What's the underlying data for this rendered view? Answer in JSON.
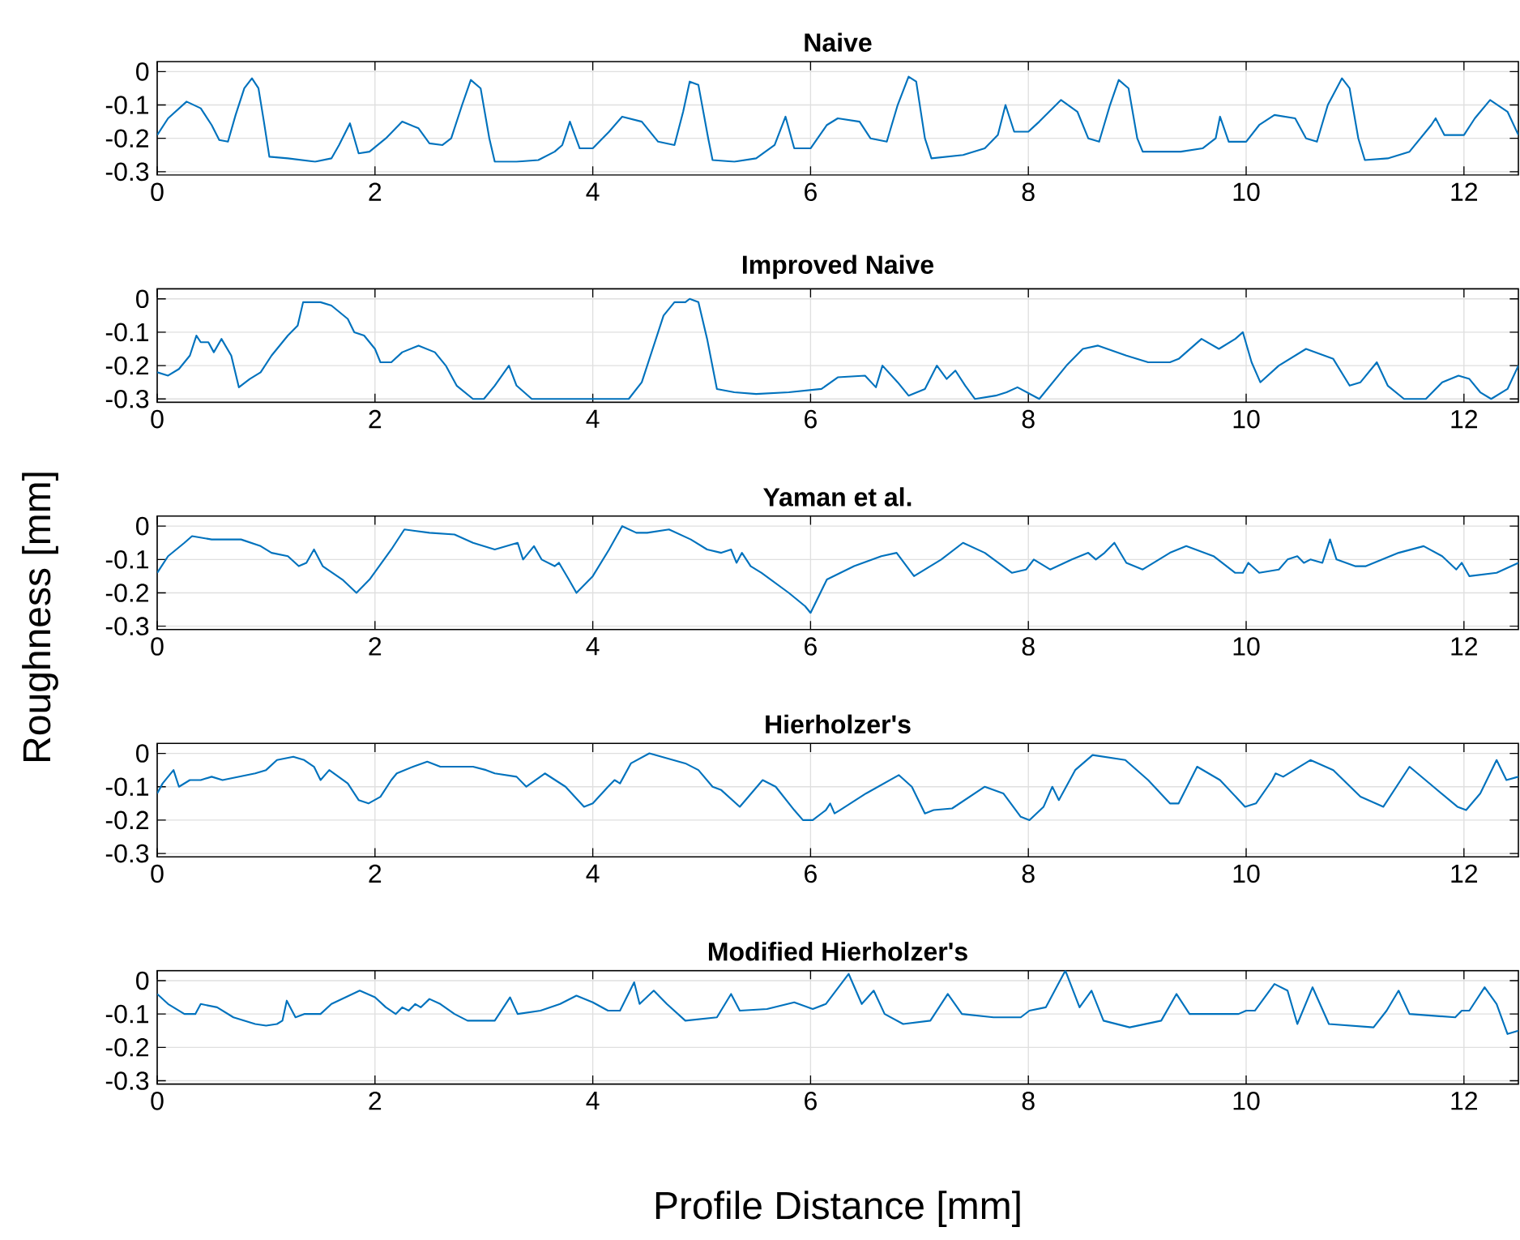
{
  "chart_data": [
    {
      "type": "line",
      "title": "Naive",
      "xlim": [
        0,
        12.5
      ],
      "ylim": [
        -0.31,
        0.03
      ],
      "xticks": [
        0,
        2,
        4,
        6,
        8,
        10,
        12
      ],
      "yticks": [
        -0.3,
        -0.2,
        -0.1,
        0
      ],
      "grid": true,
      "x": [
        0,
        0.1,
        0.27,
        0.4,
        0.5,
        0.57,
        0.65,
        0.72,
        0.8,
        0.87,
        0.93,
        0.98,
        1.03,
        1.2,
        1.45,
        1.6,
        1.67,
        1.77,
        1.85,
        1.95,
        2.1,
        2.25,
        2.4,
        2.5,
        2.62,
        2.7,
        2.8,
        2.88,
        2.97,
        3.05,
        3.1,
        3.3,
        3.5,
        3.65,
        3.72,
        3.79,
        3.88,
        4.0,
        4.15,
        4.27,
        4.45,
        4.6,
        4.75,
        4.83,
        4.89,
        4.97,
        5.06,
        5.1,
        5.3,
        5.5,
        5.67,
        5.77,
        5.85,
        6.0,
        6.15,
        6.25,
        6.45,
        6.55,
        6.7,
        6.8,
        6.9,
        6.97,
        7.05,
        7.11,
        7.4,
        7.6,
        7.72,
        7.79,
        7.87,
        8.0,
        8.1,
        8.3,
        8.45,
        8.55,
        8.65,
        8.75,
        8.83,
        8.92,
        9.0,
        9.05,
        9.4,
        9.6,
        9.72,
        9.76,
        9.84,
        10.0,
        10.12,
        10.26,
        10.45,
        10.55,
        10.65,
        10.75,
        10.88,
        10.95,
        11.03,
        11.09,
        11.3,
        11.5,
        11.6,
        11.7,
        11.74,
        11.82,
        12.0,
        12.1,
        12.24,
        12.4,
        12.5
      ],
      "series": [
        {
          "color": "#0072bd",
          "values": [
            -0.19,
            -0.14,
            -0.09,
            -0.11,
            -0.16,
            -0.205,
            -0.21,
            -0.13,
            -0.05,
            -0.02,
            -0.05,
            -0.15,
            -0.255,
            -0.26,
            -0.27,
            -0.26,
            -0.22,
            -0.155,
            -0.245,
            -0.24,
            -0.2,
            -0.15,
            -0.17,
            -0.215,
            -0.22,
            -0.2,
            -0.1,
            -0.025,
            -0.05,
            -0.2,
            -0.27,
            -0.27,
            -0.265,
            -0.24,
            -0.22,
            -0.15,
            -0.23,
            -0.23,
            -0.18,
            -0.135,
            -0.15,
            -0.21,
            -0.22,
            -0.12,
            -0.03,
            -0.04,
            -0.2,
            -0.265,
            -0.27,
            -0.26,
            -0.22,
            -0.135,
            -0.23,
            -0.23,
            -0.16,
            -0.14,
            -0.15,
            -0.2,
            -0.21,
            -0.1,
            -0.015,
            -0.03,
            -0.2,
            -0.26,
            -0.25,
            -0.23,
            -0.19,
            -0.1,
            -0.18,
            -0.18,
            -0.15,
            -0.085,
            -0.12,
            -0.2,
            -0.21,
            -0.1,
            -0.025,
            -0.05,
            -0.2,
            -0.24,
            -0.24,
            -0.23,
            -0.2,
            -0.135,
            -0.21,
            -0.21,
            -0.16,
            -0.13,
            -0.14,
            -0.2,
            -0.21,
            -0.1,
            -0.02,
            -0.05,
            -0.2,
            -0.265,
            -0.26,
            -0.24,
            -0.2,
            -0.16,
            -0.14,
            -0.19,
            -0.19,
            -0.14,
            -0.085,
            -0.12,
            -0.19
          ]
        }
      ]
    },
    {
      "type": "line",
      "title": "Improved Naive",
      "xlim": [
        0,
        12.5
      ],
      "ylim": [
        -0.31,
        0.03
      ],
      "xticks": [
        0,
        2,
        4,
        6,
        8,
        10,
        12
      ],
      "yticks": [
        -0.3,
        -0.2,
        -0.1,
        0
      ],
      "grid": true,
      "x": [
        0,
        0.1,
        0.2,
        0.3,
        0.36,
        0.4,
        0.47,
        0.52,
        0.59,
        0.68,
        0.75,
        0.85,
        0.95,
        1.05,
        1.2,
        1.29,
        1.34,
        1.5,
        1.6,
        1.75,
        1.81,
        1.9,
        2.0,
        2.05,
        2.15,
        2.25,
        2.4,
        2.55,
        2.65,
        2.75,
        2.9,
        3.0,
        3.1,
        3.23,
        3.3,
        3.44,
        4.33,
        4.45,
        4.55,
        4.65,
        4.75,
        4.85,
        4.89,
        4.97,
        5.05,
        5.14,
        5.3,
        5.5,
        5.8,
        6.1,
        6.25,
        6.5,
        6.6,
        6.66,
        6.8,
        6.9,
        7.05,
        7.16,
        7.25,
        7.33,
        7.42,
        7.51,
        7.7,
        7.8,
        7.9,
        8.1,
        8.35,
        8.5,
        8.64,
        8.9,
        9.1,
        9.3,
        9.38,
        9.59,
        9.75,
        9.9,
        9.97,
        10.05,
        10.13,
        10.3,
        10.55,
        10.8,
        10.95,
        11.05,
        11.2,
        11.3,
        11.45,
        11.65,
        11.8,
        11.95,
        12.05,
        12.15,
        12.25,
        12.4,
        12.5
      ],
      "series": [
        {
          "color": "#0072bd",
          "values": [
            -0.22,
            -0.23,
            -0.21,
            -0.17,
            -0.11,
            -0.13,
            -0.13,
            -0.16,
            -0.12,
            -0.17,
            -0.265,
            -0.24,
            -0.22,
            -0.17,
            -0.11,
            -0.08,
            -0.01,
            -0.01,
            -0.02,
            -0.06,
            -0.1,
            -0.11,
            -0.15,
            -0.19,
            -0.19,
            -0.16,
            -0.14,
            -0.16,
            -0.2,
            -0.26,
            -0.3,
            -0.3,
            -0.26,
            -0.2,
            -0.26,
            -0.3,
            -0.3,
            -0.25,
            -0.15,
            -0.05,
            -0.01,
            -0.01,
            0.0,
            -0.01,
            -0.12,
            -0.27,
            -0.28,
            -0.285,
            -0.28,
            -0.27,
            -0.235,
            -0.23,
            -0.265,
            -0.2,
            -0.25,
            -0.29,
            -0.27,
            -0.2,
            -0.24,
            -0.215,
            -0.26,
            -0.3,
            -0.29,
            -0.28,
            -0.265,
            -0.3,
            -0.2,
            -0.15,
            -0.14,
            -0.17,
            -0.19,
            -0.19,
            -0.18,
            -0.12,
            -0.15,
            -0.12,
            -0.1,
            -0.19,
            -0.25,
            -0.2,
            -0.15,
            -0.18,
            -0.26,
            -0.25,
            -0.19,
            -0.26,
            -0.3,
            -0.3,
            -0.25,
            -0.23,
            -0.24,
            -0.28,
            -0.3,
            -0.27,
            -0.2
          ]
        }
      ]
    },
    {
      "type": "line",
      "title": "Yaman et al.",
      "ylabel": "Roughness [mm]",
      "xlim": [
        0,
        12.5
      ],
      "ylim": [
        -0.31,
        0.03
      ],
      "xticks": [
        0,
        2,
        4,
        6,
        8,
        10,
        12
      ],
      "yticks": [
        -0.3,
        -0.2,
        -0.1,
        0
      ],
      "grid": true,
      "x": [
        0,
        0.1,
        0.25,
        0.32,
        0.5,
        0.7,
        0.77,
        0.95,
        1.05,
        1.2,
        1.3,
        1.37,
        1.44,
        1.52,
        1.7,
        1.83,
        1.95,
        2.15,
        2.27,
        2.5,
        2.73,
        2.9,
        3.1,
        3.31,
        3.36,
        3.46,
        3.53,
        3.65,
        3.69,
        3.78,
        3.85,
        4.0,
        4.15,
        4.27,
        4.4,
        4.5,
        4.7,
        4.9,
        5.05,
        5.18,
        5.27,
        5.32,
        5.37,
        5.45,
        5.55,
        5.8,
        5.95,
        6.0,
        6.15,
        6.4,
        6.65,
        6.79,
        6.95,
        7.2,
        7.4,
        7.6,
        7.85,
        7.98,
        8.05,
        8.2,
        8.4,
        8.55,
        8.62,
        8.7,
        8.79,
        8.9,
        9.05,
        9.3,
        9.45,
        9.7,
        9.9,
        9.97,
        10.02,
        10.12,
        10.3,
        10.38,
        10.47,
        10.53,
        10.59,
        10.7,
        10.77,
        10.83,
        11.0,
        11.1,
        11.4,
        11.63,
        11.8,
        11.93,
        11.98,
        12.05,
        12.3,
        12.5
      ],
      "series": [
        {
          "color": "#0072bd",
          "values": [
            -0.14,
            -0.09,
            -0.05,
            -0.03,
            -0.04,
            -0.04,
            -0.04,
            -0.06,
            -0.08,
            -0.09,
            -0.12,
            -0.11,
            -0.07,
            -0.12,
            -0.16,
            -0.2,
            -0.16,
            -0.07,
            -0.01,
            -0.02,
            -0.025,
            -0.05,
            -0.07,
            -0.05,
            -0.1,
            -0.06,
            -0.1,
            -0.12,
            -0.11,
            -0.16,
            -0.2,
            -0.15,
            -0.07,
            0.0,
            -0.02,
            -0.02,
            -0.01,
            -0.04,
            -0.07,
            -0.08,
            -0.07,
            -0.11,
            -0.08,
            -0.12,
            -0.14,
            -0.2,
            -0.24,
            -0.26,
            -0.16,
            -0.12,
            -0.09,
            -0.08,
            -0.15,
            -0.1,
            -0.05,
            -0.08,
            -0.14,
            -0.13,
            -0.1,
            -0.13,
            -0.1,
            -0.08,
            -0.1,
            -0.08,
            -0.05,
            -0.11,
            -0.13,
            -0.08,
            -0.06,
            -0.09,
            -0.14,
            -0.14,
            -0.11,
            -0.14,
            -0.13,
            -0.1,
            -0.09,
            -0.11,
            -0.1,
            -0.11,
            -0.04,
            -0.1,
            -0.12,
            -0.12,
            -0.08,
            -0.06,
            -0.09,
            -0.13,
            -0.11,
            -0.15,
            -0.14,
            -0.11
          ]
        }
      ]
    },
    {
      "type": "line",
      "title": "Hierholzer's",
      "xlim": [
        0,
        12.5
      ],
      "ylim": [
        -0.31,
        0.03
      ],
      "xticks": [
        0,
        2,
        4,
        6,
        8,
        10,
        12
      ],
      "yticks": [
        -0.3,
        -0.2,
        -0.1,
        0
      ],
      "grid": true,
      "x": [
        0,
        0.05,
        0.15,
        0.2,
        0.3,
        0.4,
        0.5,
        0.6,
        0.9,
        1.0,
        1.1,
        1.25,
        1.35,
        1.44,
        1.5,
        1.58,
        1.75,
        1.85,
        1.94,
        2.05,
        2.15,
        2.2,
        2.35,
        2.48,
        2.6,
        2.9,
        3.02,
        3.1,
        3.3,
        3.39,
        3.56,
        3.75,
        3.92,
        4.0,
        4.14,
        4.2,
        4.25,
        4.35,
        4.52,
        4.85,
        4.97,
        5.1,
        5.18,
        5.35,
        5.56,
        5.68,
        5.85,
        5.93,
        6.02,
        6.14,
        6.18,
        6.22,
        6.27,
        6.51,
        6.81,
        6.93,
        7.05,
        7.13,
        7.3,
        7.6,
        7.77,
        7.93,
        8.01,
        8.14,
        8.22,
        8.28,
        8.43,
        8.59,
        8.89,
        9.1,
        9.3,
        9.38,
        9.55,
        9.76,
        9.99,
        10.09,
        10.24,
        10.27,
        10.34,
        10.59,
        10.8,
        11.05,
        11.26,
        11.5,
        11.72,
        11.94,
        12.02,
        12.15,
        12.3,
        12.39,
        12.5
      ],
      "series": [
        {
          "color": "#0072bd",
          "values": [
            -0.12,
            -0.09,
            -0.05,
            -0.1,
            -0.08,
            -0.08,
            -0.07,
            -0.08,
            -0.06,
            -0.05,
            -0.02,
            -0.01,
            -0.02,
            -0.04,
            -0.08,
            -0.05,
            -0.09,
            -0.14,
            -0.15,
            -0.13,
            -0.08,
            -0.06,
            -0.04,
            -0.025,
            -0.04,
            -0.04,
            -0.05,
            -0.06,
            -0.07,
            -0.1,
            -0.06,
            -0.1,
            -0.16,
            -0.15,
            -0.1,
            -0.08,
            -0.09,
            -0.03,
            0.0,
            -0.03,
            -0.05,
            -0.1,
            -0.11,
            -0.16,
            -0.08,
            -0.1,
            -0.17,
            -0.2,
            -0.2,
            -0.17,
            -0.15,
            -0.18,
            -0.17,
            -0.12,
            -0.065,
            -0.1,
            -0.18,
            -0.17,
            -0.165,
            -0.1,
            -0.12,
            -0.19,
            -0.2,
            -0.16,
            -0.1,
            -0.14,
            -0.05,
            -0.005,
            -0.02,
            -0.08,
            -0.15,
            -0.15,
            -0.04,
            -0.08,
            -0.16,
            -0.15,
            -0.08,
            -0.06,
            -0.07,
            -0.02,
            -0.05,
            -0.13,
            -0.16,
            -0.04,
            -0.1,
            -0.16,
            -0.17,
            -0.12,
            -0.02,
            -0.08,
            -0.07
          ]
        }
      ]
    },
    {
      "type": "line",
      "title": "Modified Hierholzer's",
      "xlabel": "Profile Distance [mm]",
      "xlim": [
        0,
        12.5
      ],
      "ylim": [
        -0.31,
        0.03
      ],
      "xticks": [
        0,
        2,
        4,
        6,
        8,
        10,
        12
      ],
      "yticks": [
        -0.3,
        -0.2,
        -0.1,
        0
      ],
      "grid": true,
      "x": [
        0,
        0.1,
        0.25,
        0.35,
        0.4,
        0.55,
        0.7,
        0.9,
        1.0,
        1.1,
        1.15,
        1.19,
        1.27,
        1.35,
        1.5,
        1.6,
        1.86,
        2.0,
        2.1,
        2.19,
        2.25,
        2.31,
        2.37,
        2.42,
        2.5,
        2.6,
        2.73,
        2.85,
        3.1,
        3.24,
        3.31,
        3.52,
        3.7,
        3.85,
        4.0,
        4.14,
        4.25,
        4.38,
        4.43,
        4.56,
        4.68,
        4.85,
        5.14,
        5.27,
        5.35,
        5.6,
        5.85,
        6.02,
        6.14,
        6.35,
        6.47,
        6.58,
        6.68,
        6.85,
        7.1,
        7.26,
        7.39,
        7.68,
        7.93,
        8.01,
        8.16,
        8.34,
        8.47,
        8.58,
        8.69,
        8.93,
        9.22,
        9.36,
        9.48,
        9.93,
        10.0,
        10.08,
        10.26,
        10.38,
        10.47,
        10.61,
        10.76,
        11.17,
        11.29,
        11.4,
        11.5,
        11.92,
        11.98,
        12.05,
        12.19,
        12.3,
        12.4,
        12.5
      ],
      "series": [
        {
          "color": "#0072bd",
          "values": [
            -0.04,
            -0.07,
            -0.1,
            -0.1,
            -0.07,
            -0.08,
            -0.11,
            -0.13,
            -0.135,
            -0.13,
            -0.12,
            -0.06,
            -0.11,
            -0.1,
            -0.1,
            -0.07,
            -0.03,
            -0.05,
            -0.08,
            -0.1,
            -0.08,
            -0.09,
            -0.07,
            -0.08,
            -0.055,
            -0.07,
            -0.1,
            -0.12,
            -0.12,
            -0.05,
            -0.1,
            -0.09,
            -0.07,
            -0.045,
            -0.065,
            -0.09,
            -0.09,
            -0.005,
            -0.07,
            -0.03,
            -0.07,
            -0.12,
            -0.11,
            -0.04,
            -0.09,
            -0.085,
            -0.065,
            -0.085,
            -0.07,
            0.02,
            -0.07,
            -0.03,
            -0.1,
            -0.13,
            -0.12,
            -0.04,
            -0.1,
            -0.11,
            -0.11,
            -0.09,
            -0.08,
            0.03,
            -0.08,
            -0.03,
            -0.12,
            -0.14,
            -0.12,
            -0.04,
            -0.1,
            -0.1,
            -0.09,
            -0.09,
            -0.01,
            -0.03,
            -0.13,
            -0.02,
            -0.13,
            -0.14,
            -0.09,
            -0.03,
            -0.1,
            -0.11,
            -0.09,
            -0.09,
            -0.02,
            -0.07,
            -0.16,
            -0.15
          ]
        }
      ]
    }
  ]
}
